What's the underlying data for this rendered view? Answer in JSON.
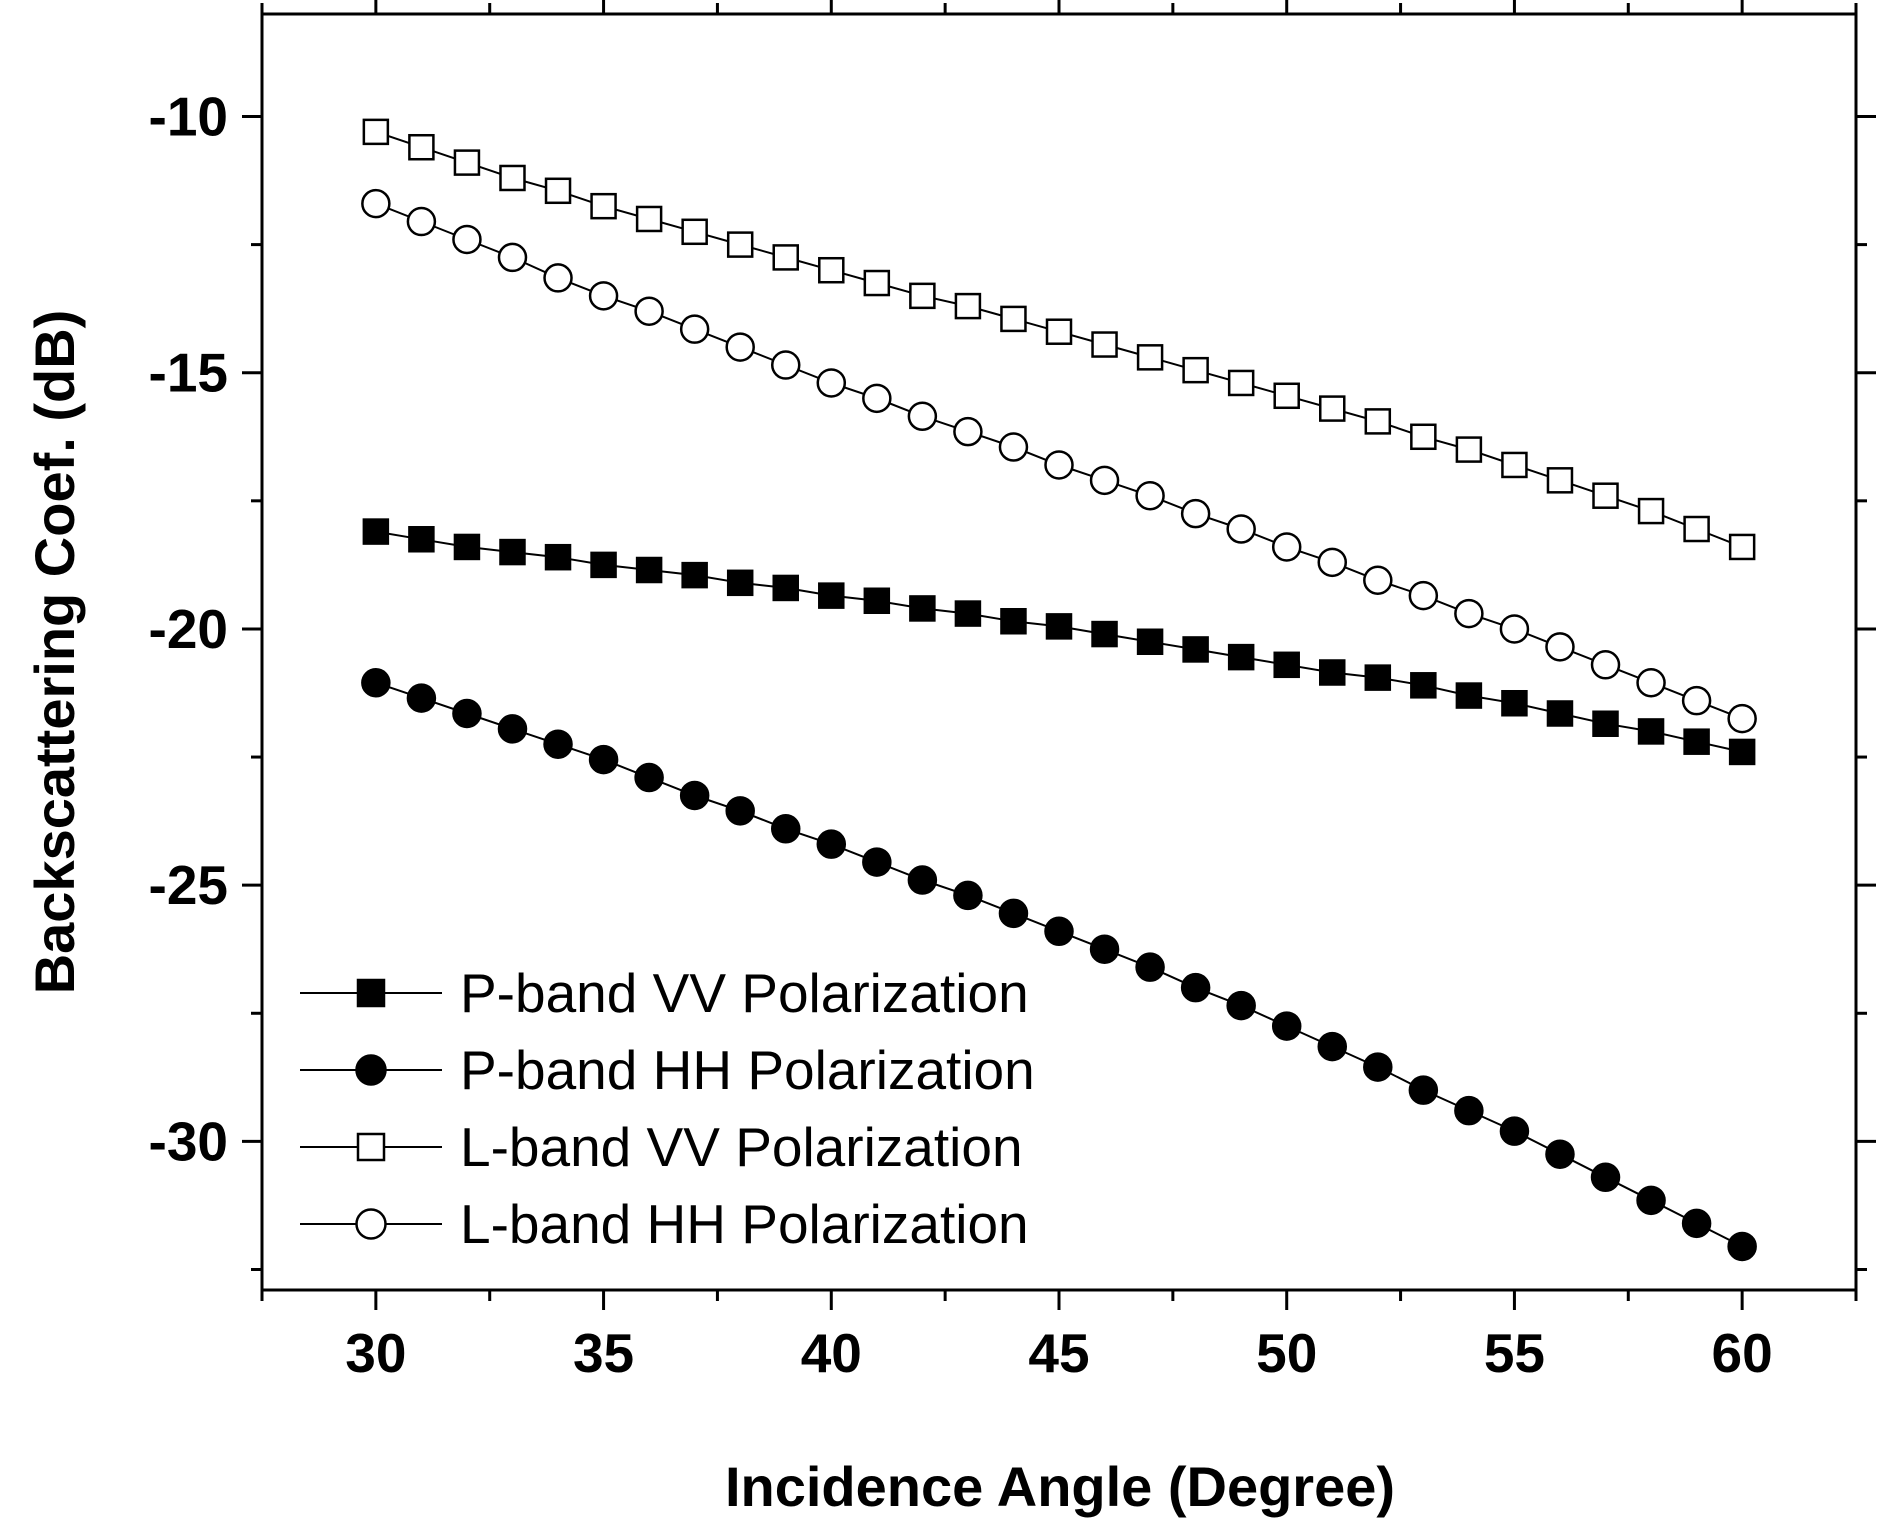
{
  "chart_data": {
    "type": "line",
    "xlabel": "Incidence Angle (Degree)",
    "ylabel": "Backscattering Coef. (dB)",
    "xlim": [
      27.5,
      62.5
    ],
    "ylim": [
      -32.9,
      -8.0
    ],
    "xticks": [
      30,
      35,
      40,
      45,
      50,
      55,
      60
    ],
    "xtick_labels": [
      "30",
      "35",
      "40",
      "45",
      "50",
      "55",
      "60"
    ],
    "yticks": [
      -10,
      -15,
      -20,
      -25,
      -30
    ],
    "ytick_labels": [
      "-10",
      "-15",
      "-20",
      "-25",
      "-30"
    ],
    "grid": false,
    "legend_position": "bottom-left",
    "x": [
      30,
      31,
      32,
      33,
      34,
      35,
      36,
      37,
      38,
      39,
      40,
      41,
      42,
      43,
      44,
      45,
      46,
      47,
      48,
      49,
      50,
      51,
      52,
      53,
      54,
      55,
      56,
      57,
      58,
      59,
      60
    ],
    "series": [
      {
        "name": "P-band VV Polarization",
        "marker": "square",
        "filled": true,
        "values": [
          -18.1,
          -18.25,
          -18.4,
          -18.5,
          -18.6,
          -18.75,
          -18.85,
          -18.95,
          -19.1,
          -19.2,
          -19.35,
          -19.45,
          -19.6,
          -19.7,
          -19.85,
          -19.95,
          -20.1,
          -20.25,
          -20.4,
          -20.55,
          -20.7,
          -20.85,
          -20.95,
          -21.1,
          -21.3,
          -21.45,
          -21.65,
          -21.85,
          -22.0,
          -22.2,
          -22.4
        ]
      },
      {
        "name": "P-band HH Polarization",
        "marker": "circle",
        "filled": true,
        "values": [
          -21.05,
          -21.35,
          -21.65,
          -21.95,
          -22.25,
          -22.55,
          -22.9,
          -23.25,
          -23.55,
          -23.9,
          -24.2,
          -24.55,
          -24.9,
          -25.2,
          -25.55,
          -25.9,
          -26.25,
          -26.6,
          -27.0,
          -27.35,
          -27.75,
          -28.15,
          -28.55,
          -29.0,
          -29.4,
          -29.8,
          -30.25,
          -30.7,
          -31.15,
          -31.6,
          -32.05
        ]
      },
      {
        "name": "L-band VV Polarization",
        "marker": "square",
        "filled": false,
        "values": [
          -10.3,
          -10.6,
          -10.9,
          -11.2,
          -11.45,
          -11.75,
          -12.0,
          -12.25,
          -12.5,
          -12.75,
          -13.0,
          -13.25,
          -13.5,
          -13.7,
          -13.95,
          -14.2,
          -14.45,
          -14.7,
          -14.95,
          -15.2,
          -15.45,
          -15.7,
          -15.95,
          -16.25,
          -16.5,
          -16.8,
          -17.1,
          -17.4,
          -17.7,
          -18.05,
          -18.4
        ]
      },
      {
        "name": "L-band HH Polarization",
        "marker": "circle",
        "filled": false,
        "values": [
          -11.7,
          -12.05,
          -12.4,
          -12.75,
          -13.15,
          -13.5,
          -13.8,
          -14.15,
          -14.5,
          -14.85,
          -15.2,
          -15.5,
          -15.85,
          -16.15,
          -16.45,
          -16.8,
          -17.1,
          -17.4,
          -17.75,
          -18.05,
          -18.4,
          -18.7,
          -19.05,
          -19.35,
          -19.7,
          -20.0,
          -20.35,
          -20.7,
          -21.05,
          -21.4,
          -21.75
        ]
      }
    ]
  }
}
